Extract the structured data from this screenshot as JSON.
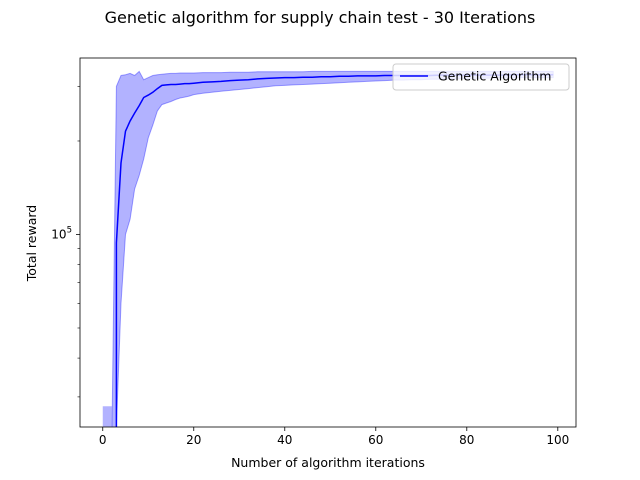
{
  "chart_data": {
    "type": "line",
    "title": "Genetic algorithm for supply chain test - 30 Iterations",
    "xlabel": "Number of algorithm iterations",
    "ylabel": "Total reward",
    "xlim": [
      -5,
      104
    ],
    "xticks": [
      0,
      20,
      40,
      60,
      80,
      100
    ],
    "yscale": "log",
    "ylim": [
      24000,
      370000
    ],
    "yticks": [
      {
        "value": 100000,
        "base": "10",
        "exp": "5"
      }
    ],
    "legend": {
      "position": "upper-right",
      "entries": [
        "Genetic Algorithm"
      ]
    },
    "series": [
      {
        "name": "Genetic Algorithm",
        "color": "#0000ff",
        "fill_color": "#0000ff",
        "x": [
          3,
          4,
          5,
          6,
          7,
          8,
          9,
          10,
          11,
          12,
          13,
          14,
          15,
          16,
          17,
          18,
          19,
          20,
          22,
          24,
          26,
          28,
          30,
          32,
          34,
          36,
          38,
          40,
          42,
          44,
          46,
          48,
          50,
          52,
          54,
          56,
          58,
          60,
          62,
          64,
          66,
          68,
          70,
          72,
          74,
          76,
          78,
          80,
          82,
          84,
          86,
          88,
          90,
          92,
          94,
          96,
          98,
          99
        ],
        "mean": [
          94000,
          170000,
          215000,
          232000,
          246000,
          260000,
          276000,
          281000,
          287000,
          295000,
          302000,
          303000,
          304000,
          304000,
          305000,
          306000,
          306000,
          307000,
          309000,
          310000,
          311000,
          313000,
          314000,
          315000,
          317000,
          318000,
          319000,
          320000,
          320000,
          321000,
          321000,
          322000,
          322000,
          323000,
          323000,
          324000,
          324000,
          324000,
          325000,
          325000,
          325000,
          325000,
          325000,
          325000,
          326000,
          326000,
          326000,
          326000,
          326000,
          326000,
          326000,
          326000,
          327000,
          327000,
          327000,
          327000,
          327000,
          327000
        ],
        "upper": [
          300000,
          325000,
          327000,
          330000,
          325000,
          335000,
          315000,
          320000,
          325000,
          327000,
          328000,
          329000,
          330000,
          330000,
          331000,
          331000,
          331000,
          331000,
          332000,
          332000,
          332000,
          333000,
          333000,
          333000,
          334000,
          334000,
          334000,
          334000,
          334000,
          334000,
          335000,
          335000,
          335000,
          335000,
          335000,
          335000,
          335000,
          335000,
          335000,
          335000,
          335000,
          335000,
          335000,
          335000,
          335000,
          335000,
          335000,
          335000,
          335000,
          335000,
          335000,
          335000,
          335000,
          335000,
          335000,
          335000,
          335000,
          335000
        ],
        "lower": [
          24000,
          60000,
          100000,
          112000,
          140000,
          155000,
          175000,
          205000,
          225000,
          250000,
          262000,
          265000,
          268000,
          272000,
          275000,
          277000,
          279000,
          282000,
          285000,
          287000,
          289000,
          291000,
          293000,
          295000,
          297000,
          299000,
          301000,
          302000,
          303000,
          304000,
          305000,
          306000,
          307000,
          308000,
          309000,
          310000,
          311000,
          312000,
          313000,
          314000,
          314000,
          315000,
          315000,
          316000,
          316000,
          317000,
          317000,
          318000,
          318000,
          318000,
          319000,
          319000,
          319000,
          320000,
          320000,
          320000,
          320000,
          320000
        ],
        "band_lead": {
          "x": [
            0,
            2
          ],
          "lower": [
            28000,
            28000
          ],
          "upper": [
            28000,
            28000
          ]
        }
      }
    ]
  }
}
